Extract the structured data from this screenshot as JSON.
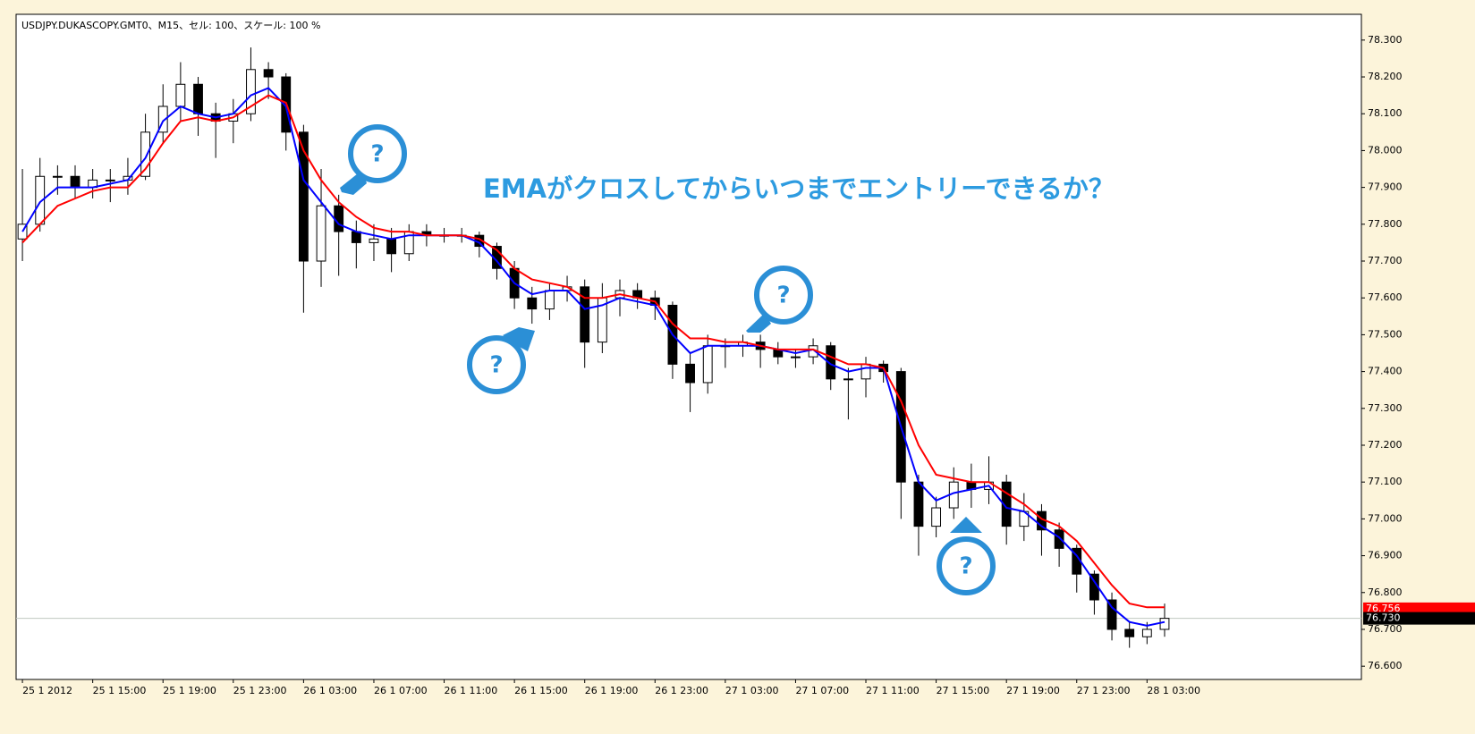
{
  "chart_data": {
    "type": "candlestick",
    "title": "USDJPY.DUKASCOPY.GMT0、M15、セル: 100、スケール: 100 %",
    "annotation": "EMAがクロスしてからいつまでエントリーできるか？",
    "callouts": [
      "?",
      "?",
      "?",
      "?"
    ],
    "x": [
      0,
      1,
      2,
      3,
      4,
      5,
      6,
      7,
      8,
      9,
      10,
      11,
      12,
      13,
      14,
      15,
      16,
      17,
      18,
      19,
      20,
      21,
      22,
      23,
      24,
      25,
      26,
      27,
      28,
      29,
      30,
      31,
      32,
      33,
      34,
      35,
      36,
      37,
      38,
      39,
      40,
      41,
      42,
      43,
      44,
      45,
      46,
      47,
      48,
      49,
      50,
      51,
      52,
      53,
      54,
      55,
      56,
      57,
      58,
      59,
      60,
      61,
      62,
      63,
      64,
      65
    ],
    "open": [
      77.76,
      77.8,
      77.93,
      77.93,
      77.9,
      77.92,
      77.92,
      77.93,
      78.05,
      78.12,
      78.18,
      78.1,
      78.08,
      78.1,
      78.22,
      78.2,
      78.05,
      77.7,
      77.85,
      77.78,
      77.75,
      77.76,
      77.72,
      77.78,
      77.77,
      77.77,
      77.77,
      77.74,
      77.68,
      77.6,
      77.57,
      77.62,
      77.63,
      77.48,
      77.6,
      77.62,
      77.6,
      77.58,
      77.42,
      77.37,
      77.47,
      77.47,
      77.48,
      77.46,
      77.44,
      77.44,
      77.47,
      77.38,
      77.38,
      77.42,
      77.4,
      77.1,
      76.98,
      77.03,
      77.1,
      77.08,
      77.1,
      76.98,
      77.02,
      76.97,
      76.92,
      76.85,
      76.78,
      76.7,
      76.68,
      76.7
    ],
    "high": [
      77.95,
      77.98,
      77.96,
      77.96,
      77.95,
      77.95,
      77.98,
      78.1,
      78.18,
      78.24,
      78.2,
      78.13,
      78.14,
      78.28,
      78.24,
      78.21,
      78.07,
      77.95,
      77.88,
      77.81,
      77.8,
      77.79,
      77.8,
      77.8,
      77.79,
      77.79,
      77.78,
      77.75,
      77.7,
      77.63,
      77.64,
      77.66,
      77.65,
      77.64,
      77.65,
      77.64,
      77.62,
      77.59,
      77.45,
      77.5,
      77.49,
      77.5,
      77.5,
      77.48,
      77.46,
      77.49,
      77.48,
      77.41,
      77.44,
      77.43,
      77.41,
      77.12,
      77.06,
      77.14,
      77.15,
      77.17,
      77.12,
      77.07,
      77.04,
      76.99,
      76.93,
      76.86,
      76.8,
      76.72,
      76.72,
      76.77
    ],
    "low": [
      77.7,
      77.78,
      77.88,
      77.87,
      77.87,
      77.86,
      77.88,
      77.92,
      78.02,
      78.08,
      78.04,
      77.98,
      78.02,
      78.08,
      78.14,
      78.0,
      77.56,
      77.63,
      77.66,
      77.68,
      77.7,
      77.67,
      77.7,
      77.74,
      77.75,
      77.75,
      77.71,
      77.65,
      77.57,
      77.53,
      77.54,
      77.59,
      77.41,
      77.45,
      77.55,
      77.57,
      77.54,
      77.38,
      77.29,
      77.34,
      77.41,
      77.44,
      77.41,
      77.42,
      77.41,
      77.42,
      77.35,
      77.27,
      77.33,
      77.37,
      77.0,
      76.9,
      76.95,
      77.0,
      77.03,
      77.04,
      76.93,
      76.94,
      76.9,
      76.87,
      76.8,
      76.74,
      76.67,
      76.65,
      76.66,
      76.68
    ],
    "close": [
      77.8,
      77.93,
      77.93,
      77.9,
      77.92,
      77.92,
      77.93,
      78.05,
      78.12,
      78.18,
      78.1,
      78.08,
      78.1,
      78.22,
      78.2,
      78.05,
      77.7,
      77.85,
      77.78,
      77.75,
      77.76,
      77.72,
      77.78,
      77.77,
      77.77,
      77.77,
      77.74,
      77.68,
      77.6,
      77.57,
      77.62,
      77.63,
      77.48,
      77.6,
      77.62,
      77.6,
      77.58,
      77.42,
      77.37,
      77.47,
      77.47,
      77.48,
      77.46,
      77.44,
      77.44,
      77.47,
      77.38,
      77.38,
      77.42,
      77.4,
      77.1,
      76.98,
      77.03,
      77.1,
      77.08,
      77.1,
      76.98,
      77.02,
      76.97,
      76.92,
      76.85,
      76.78,
      76.7,
      76.68,
      76.7,
      76.73
    ],
    "up_color": "#ffffff",
    "down_color": "#000000",
    "ema_lines": [
      {
        "color": "#0000ff",
        "values": [
          77.78,
          77.86,
          77.9,
          77.9,
          77.9,
          77.91,
          77.92,
          77.98,
          78.08,
          78.12,
          78.1,
          78.09,
          78.1,
          78.15,
          78.17,
          78.12,
          77.92,
          77.86,
          77.8,
          77.78,
          77.77,
          77.76,
          77.77,
          77.77,
          77.77,
          77.77,
          77.75,
          77.7,
          77.64,
          77.61,
          77.62,
          77.62,
          77.57,
          77.58,
          77.6,
          77.59,
          77.58,
          77.5,
          77.45,
          77.47,
          77.47,
          77.47,
          77.47,
          77.46,
          77.45,
          77.46,
          77.42,
          77.4,
          77.41,
          77.41,
          77.25,
          77.1,
          77.05,
          77.07,
          77.08,
          77.09,
          77.03,
          77.02,
          76.98,
          76.95,
          76.9,
          76.83,
          76.76,
          76.72,
          76.71,
          76.72
        ]
      },
      {
        "color": "#ff0000",
        "values": [
          77.75,
          77.8,
          77.85,
          77.87,
          77.89,
          77.9,
          77.9,
          77.95,
          78.02,
          78.08,
          78.09,
          78.08,
          78.09,
          78.12,
          78.15,
          78.13,
          78.0,
          77.92,
          77.86,
          77.82,
          77.79,
          77.78,
          77.78,
          77.77,
          77.77,
          77.77,
          77.76,
          77.73,
          77.68,
          77.65,
          77.64,
          77.63,
          77.6,
          77.6,
          77.61,
          77.6,
          77.59,
          77.53,
          77.49,
          77.49,
          77.48,
          77.48,
          77.47,
          77.46,
          77.46,
          77.46,
          77.44,
          77.42,
          77.42,
          77.41,
          77.32,
          77.2,
          77.12,
          77.11,
          77.1,
          77.1,
          77.07,
          77.04,
          77.0,
          76.98,
          76.94,
          76.88,
          76.82,
          76.77,
          76.76,
          76.76
        ]
      }
    ],
    "price_labels": [
      {
        "value": 76.756,
        "label": "76.756",
        "color": "#ff0000"
      },
      {
        "value": 76.73,
        "label": "76.730",
        "color": "#000000",
        "line": true
      }
    ],
    "xlim": [
      -0.36,
      76.2
    ],
    "ylim": [
      76.564,
      78.37
    ],
    "xticks": [
      {
        "value": 0,
        "label": "25 1 2012"
      },
      {
        "value": 4,
        "label": "25 1 15:00"
      },
      {
        "value": 8,
        "label": "25 1 19:00"
      },
      {
        "value": 12,
        "label": "25 1 23:00"
      },
      {
        "value": 16,
        "label": "26 1 03:00"
      },
      {
        "value": 20,
        "label": "26 1 07:00"
      },
      {
        "value": 24,
        "label": "26 1 11:00"
      },
      {
        "value": 28,
        "label": "26 1 15:00"
      },
      {
        "value": 32,
        "label": "26 1 19:00"
      },
      {
        "value": 36,
        "label": "26 1 23:00"
      },
      {
        "value": 40,
        "label": "27 1 03:00"
      },
      {
        "value": 44,
        "label": "27 1 07:00"
      },
      {
        "value": 48,
        "label": "27 1 11:00"
      },
      {
        "value": 52,
        "label": "27 1 15:00"
      },
      {
        "value": 56,
        "label": "27 1 19:00"
      },
      {
        "value": 60,
        "label": "27 1 23:00"
      },
      {
        "value": 64,
        "label": "28 1 03:00"
      }
    ],
    "yticks": [
      {
        "value": 78.3,
        "label": "78.300"
      },
      {
        "value": 78.2,
        "label": "78.200"
      },
      {
        "value": 78.1,
        "label": "78.100"
      },
      {
        "value": 78.0,
        "label": "78.000"
      },
      {
        "value": 77.9,
        "label": "77.900"
      },
      {
        "value": 77.8,
        "label": "77.800"
      },
      {
        "value": 77.7,
        "label": "77.700"
      },
      {
        "value": 77.6,
        "label": "77.600"
      },
      {
        "value": 77.5,
        "label": "77.500"
      },
      {
        "value": 77.4,
        "label": "77.400"
      },
      {
        "value": 77.3,
        "label": "77.300"
      },
      {
        "value": 77.2,
        "label": "77.200"
      },
      {
        "value": 77.1,
        "label": "77.100"
      },
      {
        "value": 77.0,
        "label": "77.000"
      },
      {
        "value": 76.9,
        "label": "76.900"
      },
      {
        "value": 76.8,
        "label": "76.800"
      },
      {
        "value": 76.7,
        "label": "76.700"
      },
      {
        "value": 76.6,
        "label": "76.600"
      }
    ]
  }
}
